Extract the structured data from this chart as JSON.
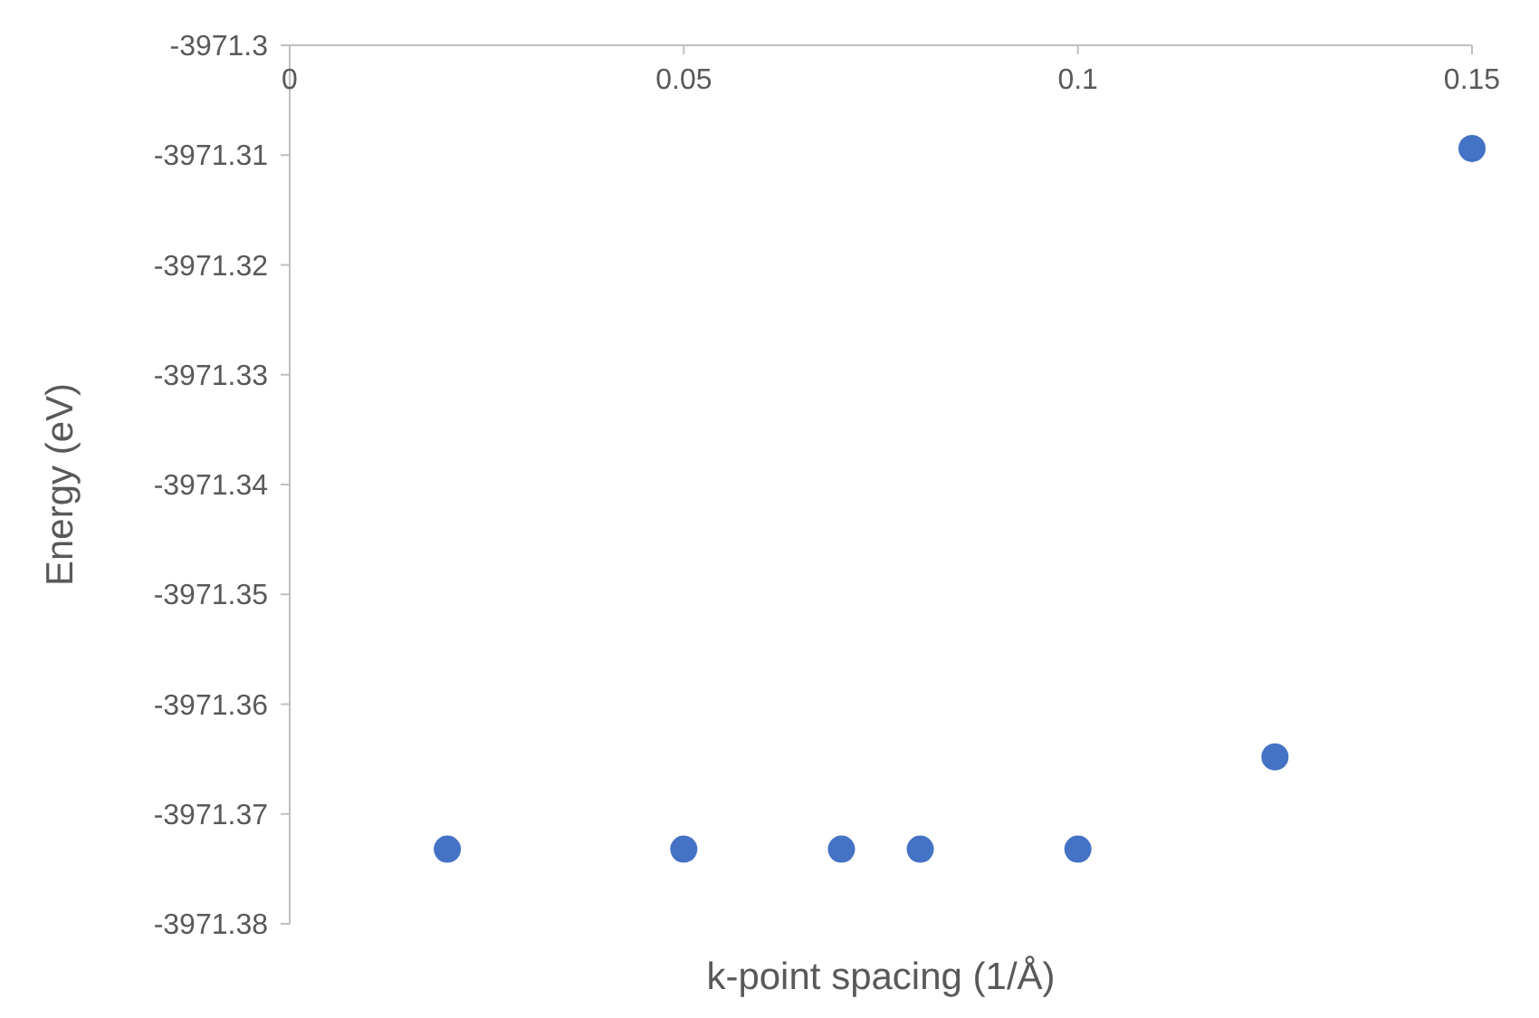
{
  "chart_data": {
    "type": "scatter",
    "xlabel": "k-point spacing (1/Å)",
    "ylabel": "Energy (eV)",
    "x": [
      0.02,
      0.05,
      0.07,
      0.08,
      0.1,
      0.125,
      0.15
    ],
    "series": [
      {
        "color": "#4472c4",
        "values": [
          -3971.3732,
          -3971.3732,
          -3971.3732,
          -3971.3732,
          -3971.3732,
          -3971.3648,
          -3971.3094
        ]
      }
    ],
    "xlim": [
      0,
      0.15
    ],
    "xticks": [
      0,
      0.05,
      0.1,
      0.15
    ],
    "ylim": [
      -3971.38,
      -3971.3
    ],
    "yticks": [
      -3971.38,
      -3971.37,
      -3971.36,
      -3971.35,
      -3971.34,
      -3971.33,
      -3971.32,
      -3971.31,
      -3971.3
    ],
    "grid": false,
    "marker": "circle"
  }
}
